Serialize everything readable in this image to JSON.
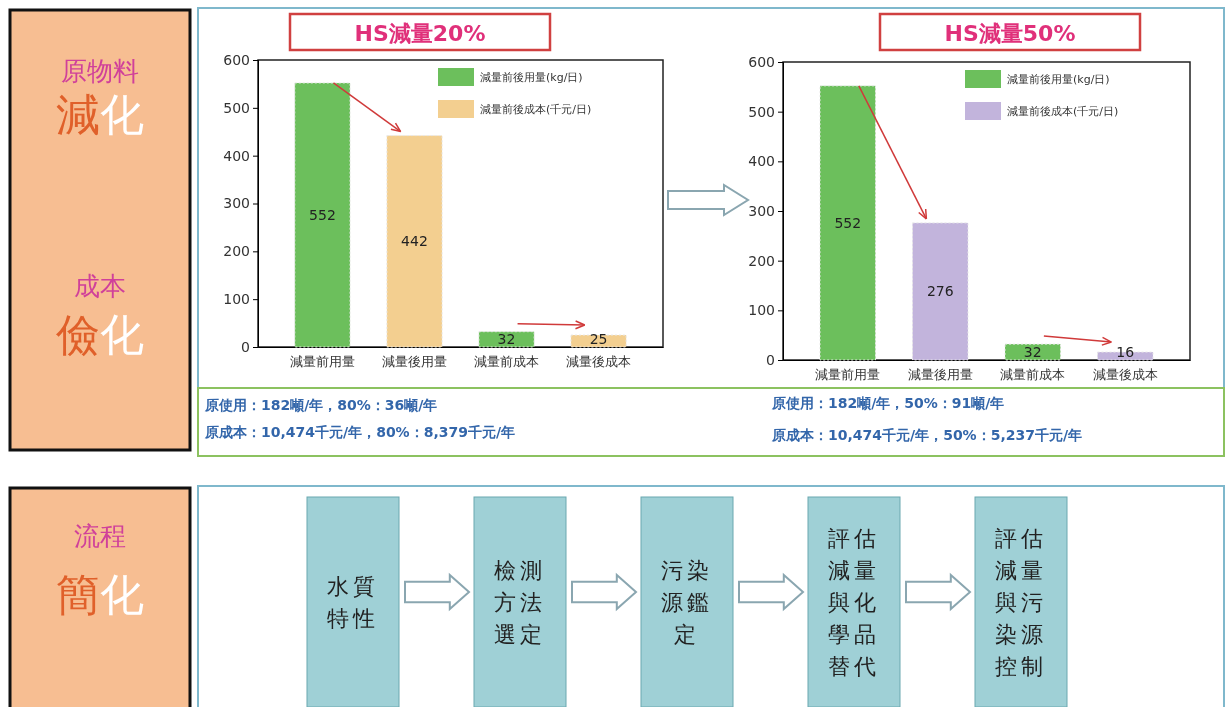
{
  "chart_data": [
    {
      "type": "bar",
      "title": "HS減量20%",
      "categories": [
        "減量前用量",
        "減量後用量",
        "減量前成本",
        "減量後成本"
      ],
      "series": [
        {
          "name": "減量前後用量(kg/日)",
          "color": "#6cbf5c",
          "values": [
            552,
            null,
            32,
            null
          ]
        },
        {
          "name": "減量前後成本(千元/日)",
          "color": "#f3cf90",
          "values": [
            null,
            442,
            null,
            25
          ]
        }
      ],
      "ylim": [
        0,
        600
      ],
      "yticks": [
        0,
        100,
        200,
        300,
        400,
        500,
        600
      ],
      "grid": false,
      "legend": "top right",
      "data_labels": true,
      "annotations": [
        "原使用：182噸/年，80%：36噸/年",
        "原成本：10,474千元/年，80%：8,379千元/年"
      ]
    },
    {
      "type": "bar",
      "title": "HS減量50%",
      "categories": [
        "減量前用量",
        "減量後用量",
        "減量前成本",
        "減量後成本"
      ],
      "series": [
        {
          "name": "減量前後用量(kg/日)",
          "color": "#6cbf5c",
          "values": [
            552,
            null,
            32,
            null
          ]
        },
        {
          "name": "減量前後成本(千元/日)",
          "color": "#c2b4dc",
          "values": [
            null,
            276,
            null,
            16
          ]
        }
      ],
      "ylim": [
        0,
        600
      ],
      "yticks": [
        0,
        100,
        200,
        300,
        400,
        500,
        600
      ],
      "grid": false,
      "legend": "top right",
      "data_labels": true,
      "annotations": [
        "原使用：182噸/年，50%：91噸/年",
        "原成本：10,474千元/年，50%：5,237千元/年"
      ]
    },
    {
      "type": "other",
      "annotations": [
        "原物料",
        "減化",
        "成本",
        "儉化",
        "流程",
        "簡化",
        "水質特性",
        "檢測方法選定",
        "污染源鑑定",
        "評估減量與化學品替代",
        "評估減量與污染源控制"
      ]
    }
  ]
}
